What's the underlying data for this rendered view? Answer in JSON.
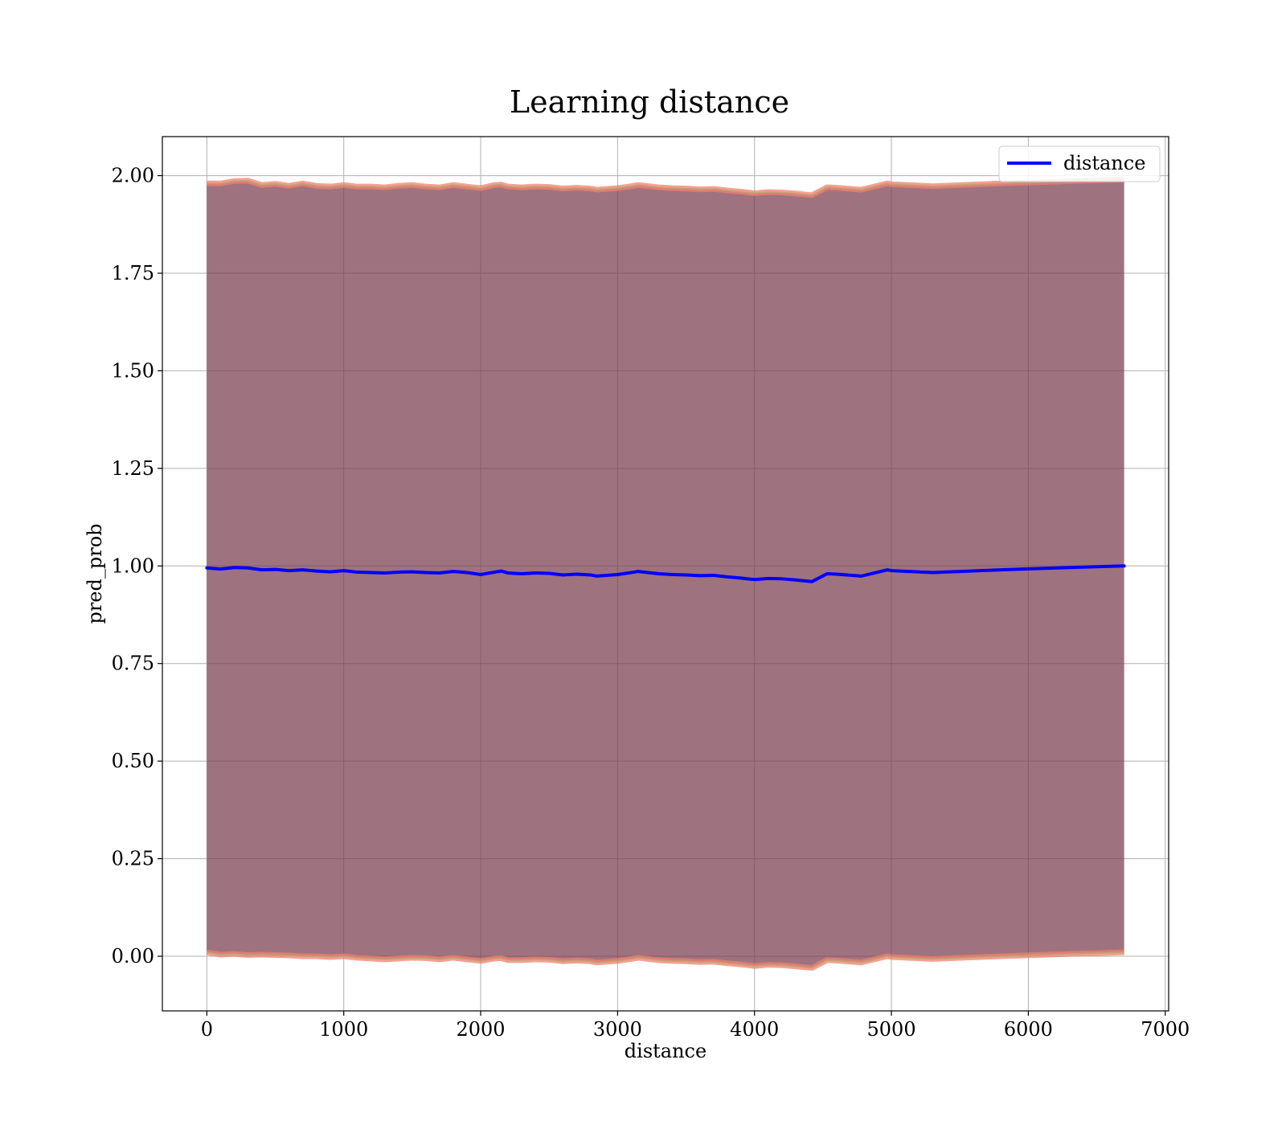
{
  "chart_data": {
    "type": "line",
    "title": "Learning distance",
    "xlabel": "distance",
    "ylabel": "pred_prob",
    "xlim": [
      -325,
      7025
    ],
    "ylim": [
      -0.14,
      2.1
    ],
    "xticks": [
      0,
      1000,
      2000,
      3000,
      4000,
      5000,
      6000,
      7000
    ],
    "xtick_labels": [
      "0",
      "1000",
      "2000",
      "3000",
      "4000",
      "5000",
      "6000",
      "7000"
    ],
    "yticks": [
      0.0,
      0.25,
      0.5,
      0.75,
      1.0,
      1.25,
      1.5,
      1.75,
      2.0
    ],
    "ytick_labels": [
      "0.00",
      "0.25",
      "0.50",
      "0.75",
      "1.00",
      "1.25",
      "1.50",
      "1.75",
      "2.00"
    ],
    "grid": true,
    "legend_position": "top-right",
    "colors": {
      "line": "#0000ff",
      "band_fill": "#7a3b4d",
      "band_edge": "#f08070",
      "band_edge_inner": "#c8a070",
      "grid": "#b0b0b0"
    },
    "series": [
      {
        "name": "distance",
        "x": [
          0,
          100,
          200,
          300,
          400,
          500,
          600,
          700,
          800,
          900,
          1000,
          1100,
          1200,
          1300,
          1400,
          1500,
          1600,
          1700,
          1800,
          1900,
          2000,
          2100,
          2150,
          2200,
          2300,
          2400,
          2500,
          2600,
          2700,
          2800,
          2850,
          3000,
          3100,
          3150,
          3300,
          3400,
          3500,
          3600,
          3700,
          3800,
          3900,
          4000,
          4100,
          4200,
          4300,
          4420,
          4530,
          4600,
          4780,
          4970,
          5000,
          5300,
          5800,
          6300,
          6700
        ],
        "y": [
          0.995,
          0.992,
          0.996,
          0.995,
          0.99,
          0.991,
          0.988,
          0.99,
          0.987,
          0.985,
          0.988,
          0.984,
          0.983,
          0.982,
          0.984,
          0.985,
          0.983,
          0.982,
          0.986,
          0.983,
          0.978,
          0.984,
          0.987,
          0.982,
          0.98,
          0.982,
          0.981,
          0.977,
          0.979,
          0.977,
          0.974,
          0.978,
          0.983,
          0.986,
          0.98,
          0.978,
          0.977,
          0.975,
          0.976,
          0.972,
          0.969,
          0.965,
          0.968,
          0.967,
          0.964,
          0.96,
          0.98,
          0.979,
          0.974,
          0.99,
          0.988,
          0.983,
          0.99,
          0.996,
          1.0
        ],
        "band_low": [
          0.01,
          0.004,
          0.006,
          0.003,
          0.004,
          0.003,
          0.002,
          0.0,
          0.0,
          -0.002,
          0.0,
          -0.004,
          -0.006,
          -0.008,
          -0.006,
          -0.004,
          -0.005,
          -0.008,
          -0.004,
          -0.008,
          -0.012,
          -0.006,
          -0.005,
          -0.01,
          -0.01,
          -0.008,
          -0.009,
          -0.013,
          -0.011,
          -0.013,
          -0.016,
          -0.012,
          -0.007,
          -0.004,
          -0.01,
          -0.012,
          -0.013,
          -0.015,
          -0.014,
          -0.018,
          -0.021,
          -0.025,
          -0.022,
          -0.023,
          -0.026,
          -0.03,
          -0.01,
          -0.011,
          -0.016,
          0.0,
          -0.002,
          -0.007,
          0.0,
          0.006,
          0.01
        ],
        "band_high": [
          1.98,
          1.98,
          1.986,
          1.987,
          1.976,
          1.979,
          1.974,
          1.98,
          1.974,
          1.972,
          1.976,
          1.972,
          1.972,
          1.97,
          1.974,
          1.976,
          1.972,
          1.97,
          1.976,
          1.972,
          1.968,
          1.976,
          1.977,
          1.972,
          1.97,
          1.972,
          1.971,
          1.967,
          1.969,
          1.967,
          1.964,
          1.968,
          1.973,
          1.976,
          1.97,
          1.968,
          1.967,
          1.965,
          1.966,
          1.962,
          1.959,
          1.955,
          1.958,
          1.957,
          1.954,
          1.95,
          1.97,
          1.969,
          1.964,
          1.98,
          1.978,
          1.973,
          1.98,
          1.986,
          1.99
        ]
      }
    ]
  }
}
